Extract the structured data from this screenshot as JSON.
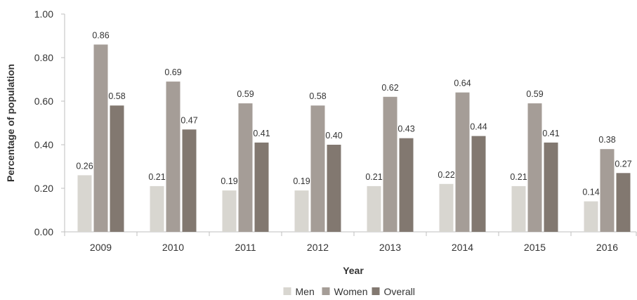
{
  "chart_data": {
    "type": "bar",
    "title": "",
    "xlabel": "Year",
    "ylabel": "Percentage of population",
    "ylim": [
      0,
      1
    ],
    "yticks": [
      "0.00",
      "0.20",
      "0.40",
      "0.60",
      "0.80",
      "1.00"
    ],
    "grid": false,
    "legend": "bottom",
    "categories": [
      "2009",
      "2010",
      "2011",
      "2012",
      "2013",
      "2014",
      "2015",
      "2016"
    ],
    "series": [
      {
        "name": "Men",
        "color": "#d8d6d0",
        "values": [
          0.26,
          0.21,
          0.19,
          0.19,
          0.21,
          0.22,
          0.21,
          0.14
        ],
        "labels": [
          "0.26",
          "0.21",
          "0.19",
          "0.19",
          "0.21",
          "0.22",
          "0.21",
          "0.14"
        ]
      },
      {
        "name": "Women",
        "color": "#a59d97",
        "values": [
          0.86,
          0.69,
          0.59,
          0.58,
          0.62,
          0.64,
          0.59,
          0.38
        ],
        "labels": [
          "0.86",
          "0.69",
          "0.59",
          "0.58",
          "0.62",
          "0.64",
          "0.59",
          "0.38"
        ]
      },
      {
        "name": "Overall",
        "color": "#827870",
        "values": [
          0.58,
          0.47,
          0.41,
          0.4,
          0.43,
          0.44,
          0.41,
          0.27
        ],
        "labels": [
          "0.58",
          "0.47",
          "0.41",
          "0.40",
          "0.43",
          "0.44",
          "0.41",
          "0.27"
        ]
      }
    ]
  }
}
